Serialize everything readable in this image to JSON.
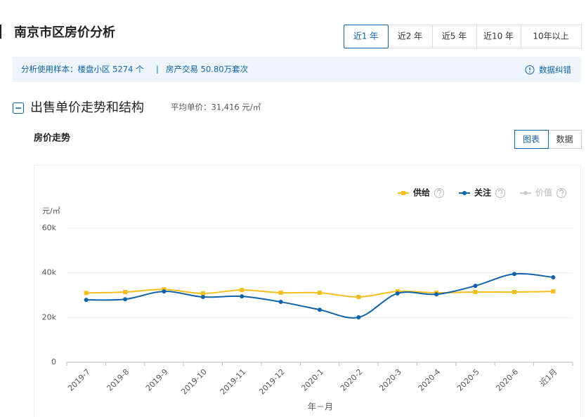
{
  "header": {
    "title": "南京市区房价分析",
    "tabs": [
      "近1 年",
      "近2 年",
      "近5 年",
      "近10 年",
      "10年以上"
    ],
    "active_tab": 0
  },
  "info": {
    "sample": "分析使用样本：楼盘小区 5274 个",
    "separator": "|",
    "trade": "房产交易 50.80万套次",
    "feedback": "数据纠错"
  },
  "section": {
    "title": "出售单价走势和结构",
    "average": "平均单价：31,416 元/㎡"
  },
  "panel": {
    "title": "房价走势",
    "toggles": [
      "图表",
      "数据"
    ],
    "active_toggle": 0
  },
  "chart_data": {
    "type": "line",
    "y_label": "元/㎡",
    "x_label": "年－月",
    "categories": [
      "2019-7",
      "2019-8",
      "2019-9",
      "2019-10",
      "2019-11",
      "2019-12",
      "2020-1",
      "2020-2",
      "2020-3",
      "2020-4",
      "2020-5",
      "2020-6",
      "近1月"
    ],
    "series": [
      {
        "name": "供给",
        "color": "#f5be1d",
        "marker": "square",
        "values": [
          31000,
          31400,
          32600,
          30800,
          32300,
          31100,
          31100,
          29200,
          31700,
          31100,
          31400,
          31400,
          31700
        ]
      },
      {
        "name": "关注",
        "color": "#0f63a8",
        "marker": "circle",
        "values": [
          27900,
          28200,
          31700,
          29200,
          29500,
          27000,
          23500,
          20100,
          30800,
          30400,
          34200,
          39500,
          38000
        ]
      },
      {
        "name": "价值",
        "color": "#cccccc",
        "marker": "circle",
        "visible": false,
        "values": [
          null,
          null,
          null,
          null,
          null,
          null,
          null,
          null,
          null,
          null,
          null,
          null,
          null
        ]
      }
    ],
    "ylim": [
      0,
      60000
    ],
    "yticks": [
      0,
      {
        "value": 20000,
        "label": "20k"
      },
      {
        "value": 40000,
        "label": "40k"
      },
      {
        "value": 60000,
        "label": "60k"
      }
    ],
    "grid": true,
    "legend": "top-right"
  }
}
